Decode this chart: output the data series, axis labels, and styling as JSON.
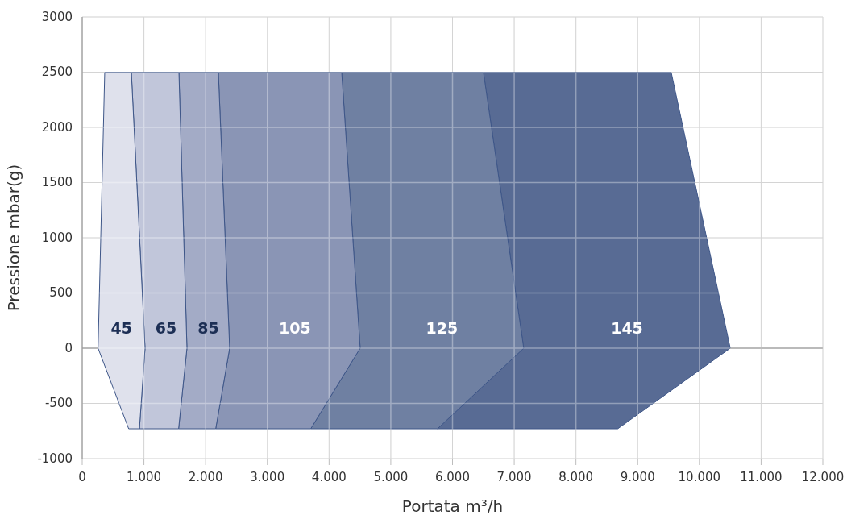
{
  "chart_data": {
    "type": "area",
    "xlabel": "Portata m³/h",
    "ylabel": "Pressione mbar(g)",
    "xlim": [
      0,
      12000
    ],
    "ylim": [
      -1000,
      3000
    ],
    "xticks": [
      0,
      {
        "value": 1000,
        "label": "1.000"
      },
      {
        "value": 2000,
        "label": "2.000"
      },
      {
        "value": 3000,
        "label": "3.000"
      },
      {
        "value": 4000,
        "label": "4.000"
      },
      {
        "value": 5000,
        "label": "5.000"
      },
      {
        "value": 6000,
        "label": "6.000"
      },
      {
        "value": 7000,
        "label": "7.000"
      },
      {
        "value": 8000,
        "label": "8.000"
      },
      {
        "value": 9000,
        "label": "9.000"
      },
      {
        "value": 10000,
        "label": "10.000"
      },
      {
        "value": 11000,
        "label": "11.000"
      },
      {
        "value": 12000,
        "label": "12.000"
      }
    ],
    "yticks": [
      -1000,
      -500,
      0,
      500,
      1000,
      1500,
      2000,
      2500,
      3000
    ],
    "grid": true,
    "ref_lines": [
      {
        "axis": "y",
        "value": 0,
        "color": "#8c8c8c"
      }
    ],
    "series": [
      {
        "name": "45",
        "color": "#dfe1ec",
        "x": [
          365,
          796,
          1018,
          927,
          753,
          257
        ],
        "values": [
          2500,
          2500,
          0,
          -730,
          -730,
          0
        ]
      },
      {
        "name": "65",
        "color": "#c1c6da",
        "x": [
          796,
          1567,
          1697,
          1562,
          927,
          1018
        ],
        "values": [
          2500,
          2500,
          0,
          -730,
          -730,
          0
        ]
      },
      {
        "name": "85",
        "color": "#a3abc6",
        "x": [
          1567,
          2206,
          2389,
          2163,
          1562,
          1697
        ],
        "values": [
          2500,
          2500,
          0,
          -730,
          -730,
          0
        ]
      },
      {
        "name": "105",
        "color": "#8a95b5",
        "x": [
          2206,
          4204,
          4504,
          3703,
          2163,
          2389
        ],
        "values": [
          2500,
          2500,
          0,
          -730,
          -730,
          0
        ]
      },
      {
        "name": "125",
        "color": "#6f80a2",
        "x": [
          4204,
          6501,
          7154,
          5757,
          3703,
          4504
        ],
        "values": [
          2500,
          2500,
          0,
          -730,
          -730,
          0
        ]
      },
      {
        "name": "145",
        "color": "#586b94",
        "x": [
          6501,
          9543,
          10500,
          8677,
          5757,
          7154
        ],
        "values": [
          2500,
          2500,
          0,
          -730,
          -730,
          0
        ]
      }
    ]
  }
}
